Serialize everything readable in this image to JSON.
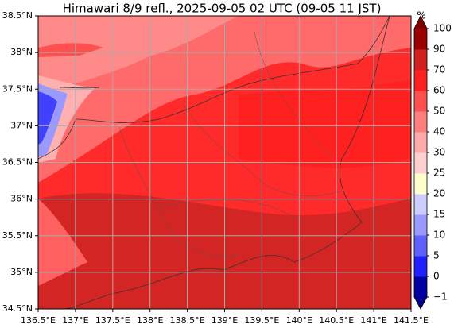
{
  "title": "Himawari 8/9 refl., 2025-09-05 02 UTC (09-05 11 JST)",
  "lon_ticks": [
    {
      "value": 136.5,
      "label": "136.5°E"
    },
    {
      "value": 137,
      "label": "137°E"
    },
    {
      "value": 137.5,
      "label": "137.5°E"
    },
    {
      "value": 138,
      "label": "138°E"
    },
    {
      "value": 138.5,
      "label": "138.5°E"
    },
    {
      "value": 139,
      "label": "139°E"
    },
    {
      "value": 139.5,
      "label": "139.5°E"
    },
    {
      "value": 140,
      "label": "140°E"
    },
    {
      "value": 140.5,
      "label": "140.5°E"
    },
    {
      "value": 141,
      "label": "141°E"
    },
    {
      "value": 141.5,
      "label": "141.5°E"
    }
  ],
  "lat_ticks": [
    {
      "value": 34.5,
      "label": "34.5°N"
    },
    {
      "value": 35,
      "label": "35°N"
    },
    {
      "value": 35.5,
      "label": "35.5°N"
    },
    {
      "value": 36,
      "label": "36°N"
    },
    {
      "value": 36.5,
      "label": "36.5°N"
    },
    {
      "value": 37,
      "label": "37°N"
    },
    {
      "value": 37.5,
      "label": "37.5°N"
    },
    {
      "value": 38,
      "label": "38°N"
    },
    {
      "value": 38.5,
      "label": "38.5°N"
    }
  ],
  "grid": true,
  "colorbar": {
    "unit": "%",
    "levels": [
      {
        "value": -1,
        "label": "−1"
      },
      0,
      5,
      10,
      15,
      20,
      25,
      30,
      40,
      50,
      60,
      70,
      90,
      100
    ],
    "colors": [
      "#0000a0",
      "#2020ff",
      "#6060ff",
      "#9999ff",
      "#ccccff",
      "#ffffcc",
      "#ffd0d0",
      "#ffaaaa",
      "#ff7f7f",
      "#ff5050",
      "#ff2020",
      "#d02020",
      "#9a0000"
    ],
    "under_color": "#00008b",
    "over_color": "#7f0000"
  }
}
